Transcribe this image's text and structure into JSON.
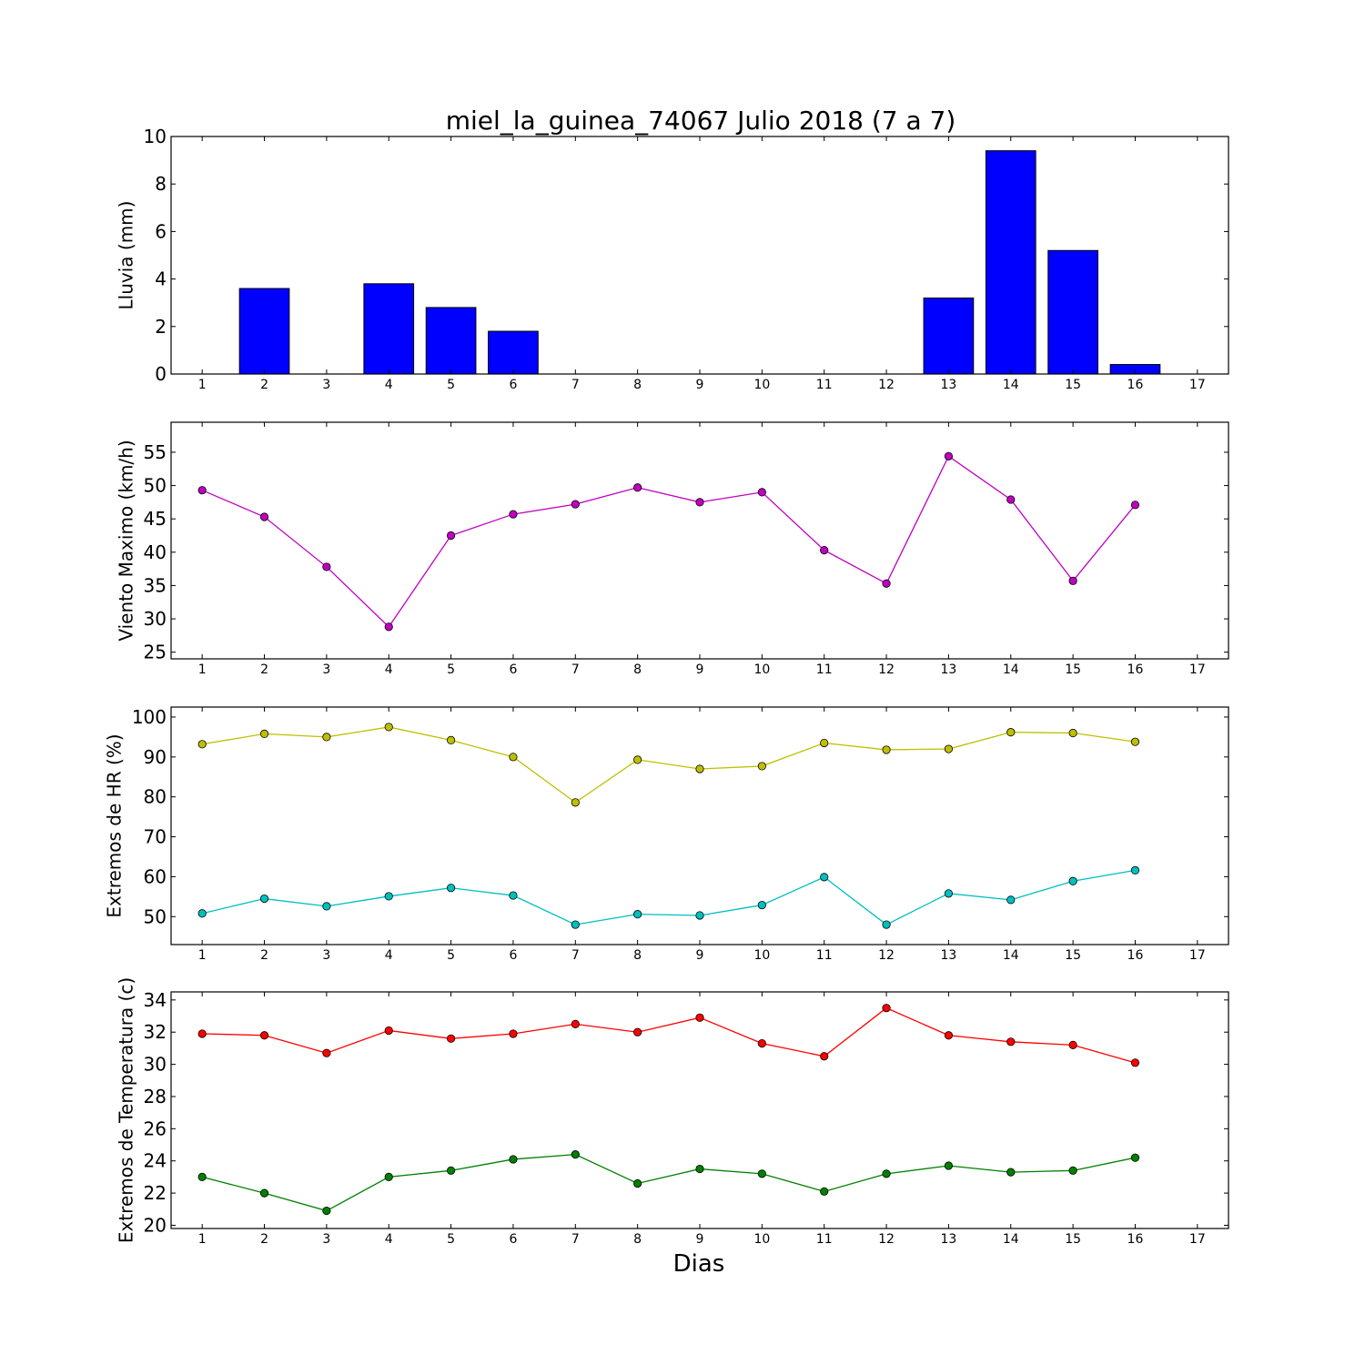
{
  "title": "miel_la_guinea_74067 Julio 2018  (7 a 7)",
  "xlabel": "Dias",
  "chart_data": [
    {
      "type": "bar",
      "ylabel": "Lluvia (mm)",
      "x": [
        1,
        2,
        3,
        4,
        5,
        6,
        7,
        8,
        9,
        10,
        11,
        12,
        13,
        14,
        15,
        16
      ],
      "values": [
        0,
        3.6,
        0,
        3.8,
        2.8,
        1.8,
        0,
        0,
        0,
        0,
        0,
        0,
        3.2,
        9.4,
        5.2,
        0.4
      ],
      "color": "#0000ff",
      "xlim": [
        0.5,
        17.5
      ],
      "ylim": [
        0,
        10
      ],
      "xticks": [
        1,
        2,
        3,
        4,
        5,
        6,
        7,
        8,
        9,
        10,
        11,
        12,
        13,
        14,
        15,
        16,
        17
      ],
      "yticks": [
        0,
        2,
        4,
        6,
        8,
        10
      ]
    },
    {
      "type": "line",
      "ylabel": "Viento Maximo (km/h)",
      "x": [
        1,
        2,
        3,
        4,
        5,
        6,
        7,
        8,
        9,
        10,
        11,
        12,
        13,
        14,
        15,
        16
      ],
      "series": [
        {
          "color": "#bf00bf",
          "values": [
            49.3,
            45.3,
            37.8,
            28.8,
            42.5,
            45.7,
            47.2,
            49.7,
            47.5,
            49.0,
            40.3,
            35.3,
            54.4,
            47.9,
            35.7,
            47.1
          ]
        }
      ],
      "xlim": [
        0.5,
        17.5
      ],
      "ylim": [
        24,
        59.5
      ],
      "xticks": [
        1,
        2,
        3,
        4,
        5,
        6,
        7,
        8,
        9,
        10,
        11,
        12,
        13,
        14,
        15,
        16,
        17
      ],
      "yticks": [
        25,
        30,
        35,
        40,
        45,
        50,
        55
      ]
    },
    {
      "type": "line",
      "ylabel": "Extremos de HR (%)",
      "x": [
        1,
        2,
        3,
        4,
        5,
        6,
        7,
        8,
        9,
        10,
        11,
        12,
        13,
        14,
        15,
        16
      ],
      "series": [
        {
          "color": "#bfbf00",
          "values": [
            93.2,
            95.8,
            95.0,
            97.5,
            94.2,
            90.0,
            78.6,
            89.3,
            87.0,
            87.7,
            93.5,
            91.8,
            92.0,
            96.2,
            96.0,
            93.8
          ]
        },
        {
          "color": "#00bfbf",
          "values": [
            50.8,
            54.5,
            52.6,
            55.1,
            57.2,
            55.3,
            48.0,
            50.6,
            50.3,
            52.9,
            59.9,
            48.0,
            55.8,
            54.2,
            58.9,
            61.6
          ]
        }
      ],
      "xlim": [
        0.5,
        17.5
      ],
      "ylim": [
        43,
        102.5
      ],
      "xticks": [
        1,
        2,
        3,
        4,
        5,
        6,
        7,
        8,
        9,
        10,
        11,
        12,
        13,
        14,
        15,
        16,
        17
      ],
      "yticks": [
        50,
        60,
        70,
        80,
        90,
        100
      ]
    },
    {
      "type": "line",
      "ylabel": "Extremos de Temperatura (c)",
      "x": [
        1,
        2,
        3,
        4,
        5,
        6,
        7,
        8,
        9,
        10,
        11,
        12,
        13,
        14,
        15,
        16
      ],
      "series": [
        {
          "color": "#ff0000",
          "values": [
            31.9,
            31.8,
            30.7,
            32.1,
            31.6,
            31.9,
            32.5,
            32.0,
            32.9,
            31.3,
            30.5,
            33.5,
            31.8,
            31.4,
            31.2,
            30.1
          ]
        },
        {
          "color": "#008000",
          "values": [
            23.0,
            22.0,
            20.9,
            23.0,
            23.4,
            24.1,
            24.4,
            22.6,
            23.5,
            23.2,
            22.1,
            23.2,
            23.7,
            23.3,
            23.4,
            24.2
          ]
        }
      ],
      "xlim": [
        0.5,
        17.5
      ],
      "ylim": [
        19.8,
        34.5
      ],
      "xticks": [
        1,
        2,
        3,
        4,
        5,
        6,
        7,
        8,
        9,
        10,
        11,
        12,
        13,
        14,
        15,
        16,
        17
      ],
      "yticks": [
        20,
        22,
        24,
        26,
        28,
        30,
        32,
        34
      ]
    }
  ]
}
